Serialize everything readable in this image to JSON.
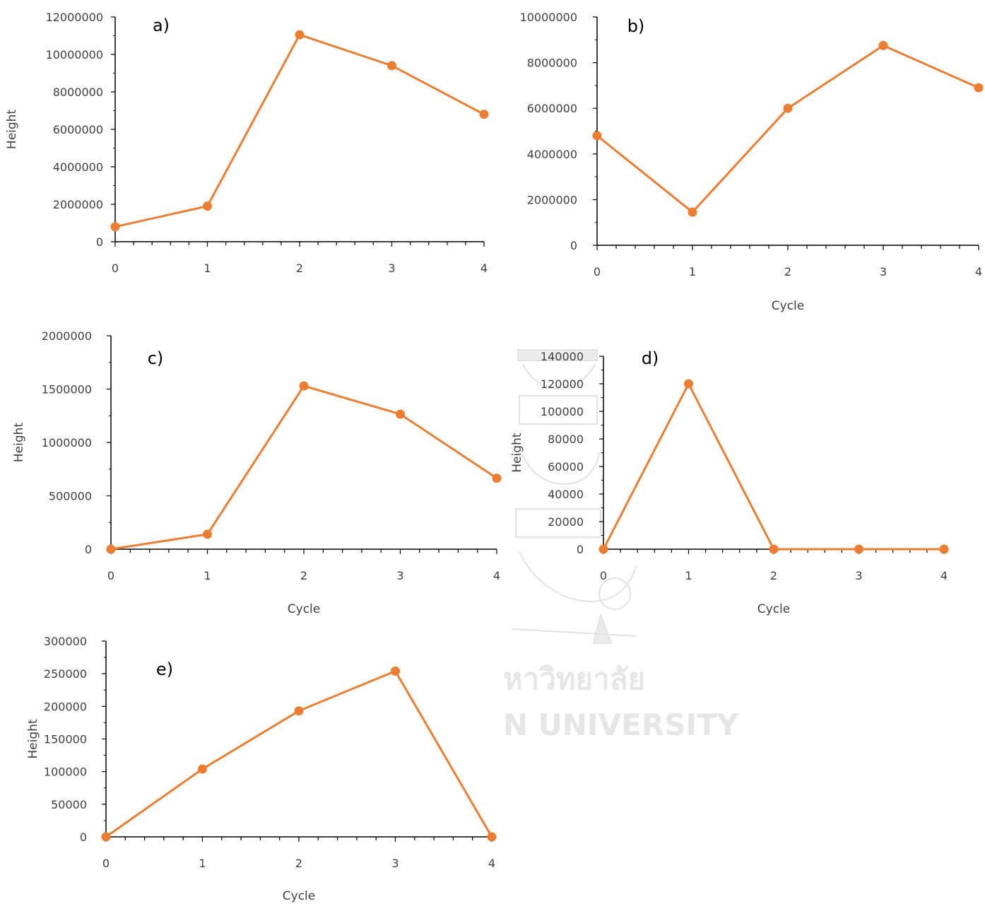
{
  "colors": {
    "series": "#ED7D31",
    "axis": "#000000",
    "text": "#404040",
    "watermark": "#e6e6e6"
  },
  "watermark": {
    "line1": "หาวิทยาลัย",
    "line2": "N UNIVERSITY"
  },
  "chart_data": [
    {
      "type": "line",
      "panel": "a)",
      "x": [
        0,
        1,
        2,
        3,
        4
      ],
      "y": [
        800000,
        1900000,
        11050000,
        9400000,
        6800000
      ],
      "ylim": [
        0,
        12000000
      ],
      "ytick_step": 2000000,
      "xlabel": "",
      "ylabel": "Height",
      "grid": false,
      "legend": "none"
    },
    {
      "type": "line",
      "panel": "b)",
      "x": [
        0,
        1,
        2,
        3,
        4
      ],
      "y": [
        4800000,
        1450000,
        6000000,
        8750000,
        6900000
      ],
      "ylim": [
        0,
        10000000
      ],
      "ytick_step": 2000000,
      "xlabel": "Cycle",
      "ylabel": "",
      "grid": false,
      "legend": "none"
    },
    {
      "type": "line",
      "panel": "c)",
      "x": [
        0,
        1,
        2,
        3,
        4
      ],
      "y": [
        0,
        140000,
        1530000,
        1265000,
        665000
      ],
      "ylim": [
        0,
        2000000
      ],
      "ytick_step": 500000,
      "xlabel": "Cycle",
      "ylabel": "Height",
      "grid": false,
      "legend": "none"
    },
    {
      "type": "line",
      "panel": "d)",
      "x": [
        0,
        1,
        2,
        3,
        4
      ],
      "y": [
        0,
        120000,
        0,
        0,
        0
      ],
      "ylim": [
        0,
        140000
      ],
      "ytick_step": 20000,
      "xlabel": "Cycle",
      "ylabel": "Height",
      "grid": false,
      "legend": "none"
    },
    {
      "type": "line",
      "panel": "e)",
      "x": [
        0,
        1,
        2,
        3,
        4
      ],
      "y": [
        0,
        104000,
        193000,
        254000,
        0
      ],
      "ylim": [
        0,
        300000
      ],
      "ytick_step": 50000,
      "xlabel": "Cycle",
      "ylabel": "Height",
      "grid": false,
      "legend": "none"
    }
  ]
}
